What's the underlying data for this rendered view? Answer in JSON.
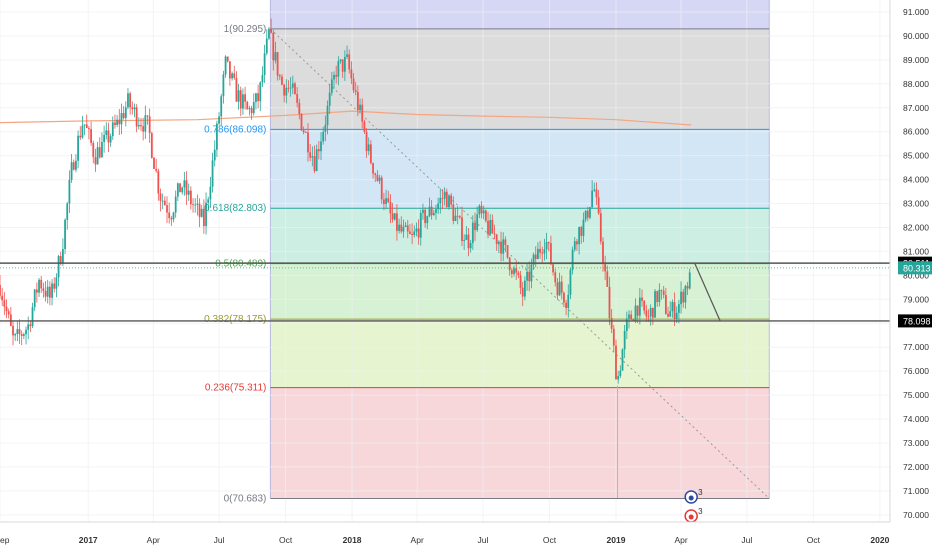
{
  "chart_data": {
    "type": "candlestick",
    "title": "",
    "y_axis": {
      "position": "right",
      "ylim": [
        69.7,
        91.5
      ],
      "ticks": [
        "91.000",
        "90.000",
        "89.000",
        "88.000",
        "87.000",
        "86.000",
        "85.000",
        "84.000",
        "83.000",
        "82.000",
        "81.000",
        "80.000",
        "79.000",
        "78.000",
        "77.000",
        "76.000",
        "75.000",
        "74.000",
        "73.000",
        "72.000",
        "71.000",
        "70.000"
      ]
    },
    "x_axis": {
      "range": [
        "2016-09-01",
        "2020-01-15"
      ],
      "ticks": [
        {
          "label": "ep",
          "date": "2016-09-01"
        },
        {
          "label": "2017",
          "date": "2017-01-01"
        },
        {
          "label": "Apr",
          "date": "2017-04-01"
        },
        {
          "label": "Jul",
          "date": "2017-07-01"
        },
        {
          "label": "Oct",
          "date": "2017-10-01"
        },
        {
          "label": "2018",
          "date": "2018-01-01"
        },
        {
          "label": "Apr",
          "date": "2018-04-01"
        },
        {
          "label": "Jul",
          "date": "2018-07-01"
        },
        {
          "label": "Oct",
          "date": "2018-10-01"
        },
        {
          "label": "2019",
          "date": "2019-01-01"
        },
        {
          "label": "Apr",
          "date": "2019-04-01"
        },
        {
          "label": "Jul",
          "date": "2019-07-01"
        },
        {
          "label": "Oct",
          "date": "2019-10-01"
        },
        {
          "label": "2020",
          "date": "2020-01-01"
        }
      ]
    },
    "price_path": [
      [
        "2016-09-01",
        79.6
      ],
      [
        "2016-09-20",
        77.2
      ],
      [
        "2016-10-10",
        77.9
      ],
      [
        "2016-10-25",
        79.8
      ],
      [
        "2016-11-10",
        79.0
      ],
      [
        "2016-11-25",
        81.0
      ],
      [
        "2016-12-10",
        84.6
      ],
      [
        "2016-12-25",
        86.5
      ],
      [
        "2017-01-10",
        85.0
      ],
      [
        "2017-01-25",
        85.6
      ],
      [
        "2017-02-10",
        86.3
      ],
      [
        "2017-02-25",
        87.2
      ],
      [
        "2017-03-10",
        86.6
      ],
      [
        "2017-03-25",
        86.2
      ],
      [
        "2017-04-10",
        83.4
      ],
      [
        "2017-04-25",
        82.6
      ],
      [
        "2017-05-10",
        83.8
      ],
      [
        "2017-05-25",
        83.0
      ],
      [
        "2017-06-10",
        82.2
      ],
      [
        "2017-06-25",
        85.3
      ],
      [
        "2017-07-10",
        88.8
      ],
      [
        "2017-07-25",
        87.6
      ],
      [
        "2017-08-10",
        86.8
      ],
      [
        "2017-08-25",
        87.4
      ],
      [
        "2017-09-08",
        90.1
      ],
      [
        "2017-09-25",
        88.0
      ],
      [
        "2017-10-10",
        87.7
      ],
      [
        "2017-10-25",
        86.2
      ],
      [
        "2017-11-10",
        84.8
      ],
      [
        "2017-11-25",
        86.5
      ],
      [
        "2017-12-10",
        88.6
      ],
      [
        "2017-12-25",
        88.9
      ],
      [
        "2018-01-10",
        87.0
      ],
      [
        "2018-01-25",
        85.0
      ],
      [
        "2018-02-10",
        83.6
      ],
      [
        "2018-02-25",
        82.3
      ],
      [
        "2018-03-10",
        81.8
      ],
      [
        "2018-03-25",
        81.5
      ],
      [
        "2018-04-10",
        82.4
      ],
      [
        "2018-04-25",
        82.8
      ],
      [
        "2018-05-10",
        83.4
      ],
      [
        "2018-05-25",
        82.3
      ],
      [
        "2018-06-10",
        81.4
      ],
      [
        "2018-06-25",
        82.6
      ],
      [
        "2018-07-10",
        81.9
      ],
      [
        "2018-07-25",
        81.4
      ],
      [
        "2018-08-10",
        80.4
      ],
      [
        "2018-08-25",
        79.2
      ],
      [
        "2018-09-10",
        80.6
      ],
      [
        "2018-09-25",
        81.6
      ],
      [
        "2018-10-10",
        79.7
      ],
      [
        "2018-10-25",
        79.0
      ],
      [
        "2018-11-05",
        81.6
      ],
      [
        "2018-11-20",
        82.3
      ],
      [
        "2018-12-01",
        83.8
      ],
      [
        "2018-12-15",
        80.6
      ],
      [
        "2018-12-25",
        77.8
      ],
      [
        "2019-01-03",
        75.6
      ],
      [
        "2019-01-15",
        77.8
      ],
      [
        "2019-01-30",
        78.8
      ],
      [
        "2019-02-15",
        78.2
      ],
      [
        "2019-03-01",
        79.3
      ],
      [
        "2019-03-15",
        78.4
      ],
      [
        "2019-03-28",
        78.7
      ],
      [
        "2019-04-08",
        79.6
      ],
      [
        "2019-04-15",
        79.9
      ]
    ],
    "moving_average": [
      [
        "2016-09-01",
        86.38
      ],
      [
        "2017-01-01",
        86.45
      ],
      [
        "2017-06-01",
        86.5
      ],
      [
        "2017-10-01",
        86.68
      ],
      [
        "2018-01-01",
        86.86
      ],
      [
        "2018-04-01",
        86.72
      ],
      [
        "2018-07-01",
        86.65
      ],
      [
        "2018-10-01",
        86.6
      ],
      [
        "2019-01-01",
        86.5
      ],
      [
        "2019-04-15",
        86.28
      ]
    ],
    "fibonacci": {
      "start_date": "2017-09-10",
      "end_date": "2019-08-01",
      "levels": [
        {
          "label": "1(90.295)",
          "value": 90.295,
          "color": "#787b86",
          "fill": "#dcdcdc"
        },
        {
          "label": "0.786(86.098)",
          "value": 86.098,
          "color": "#2196f3",
          "fill": "#d2e6f5"
        },
        {
          "label": "0.618(82.803)",
          "value": 82.803,
          "color": "#26a69a",
          "fill": "#cdeee2"
        },
        {
          "label": "0.5(80.489)",
          "value": 80.489,
          "color": "#4caf50",
          "fill": "#d6f1d4"
        },
        {
          "label": "0.382(78.175)",
          "value": 78.175,
          "color": "#9c9c2c",
          "fill": "#e7f4d0"
        },
        {
          "label": "0.236(75.311)",
          "value": 75.311,
          "color": "#e53935",
          "fill": "#f8d7da"
        },
        {
          "label": "0(70.683)",
          "value": 70.683,
          "color": "#787b86",
          "fill": "none"
        }
      ],
      "top_band_fill": "#d6d6f5"
    },
    "horizontal_lines": [
      {
        "value": 80.511,
        "label": "80.511",
        "color": "#555555"
      },
      {
        "value": 78.098,
        "label": "78.098",
        "color": "#555555"
      }
    ],
    "current_price": {
      "value": 80.313,
      "label": "80.313",
      "color": "#26a69a"
    },
    "trend_line": {
      "from": [
        "2017-09-10",
        90.295
      ],
      "to": [
        "2019-08-01",
        70.683
      ]
    },
    "projection_line": {
      "from": [
        "2019-04-20",
        80.5
      ],
      "to": [
        "2019-05-25",
        78.1
      ]
    },
    "event_markers": [
      {
        "date": "2019-04-15",
        "count": "3",
        "color": "#2f4a9e"
      },
      {
        "date": "2019-04-15",
        "count": "3",
        "color": "#e53935"
      }
    ],
    "colors": {
      "up": "#26a69a",
      "down": "#ef5350",
      "ma": "#f4a582",
      "grid": "#eef0f3",
      "axis_text": "#333333"
    }
  }
}
